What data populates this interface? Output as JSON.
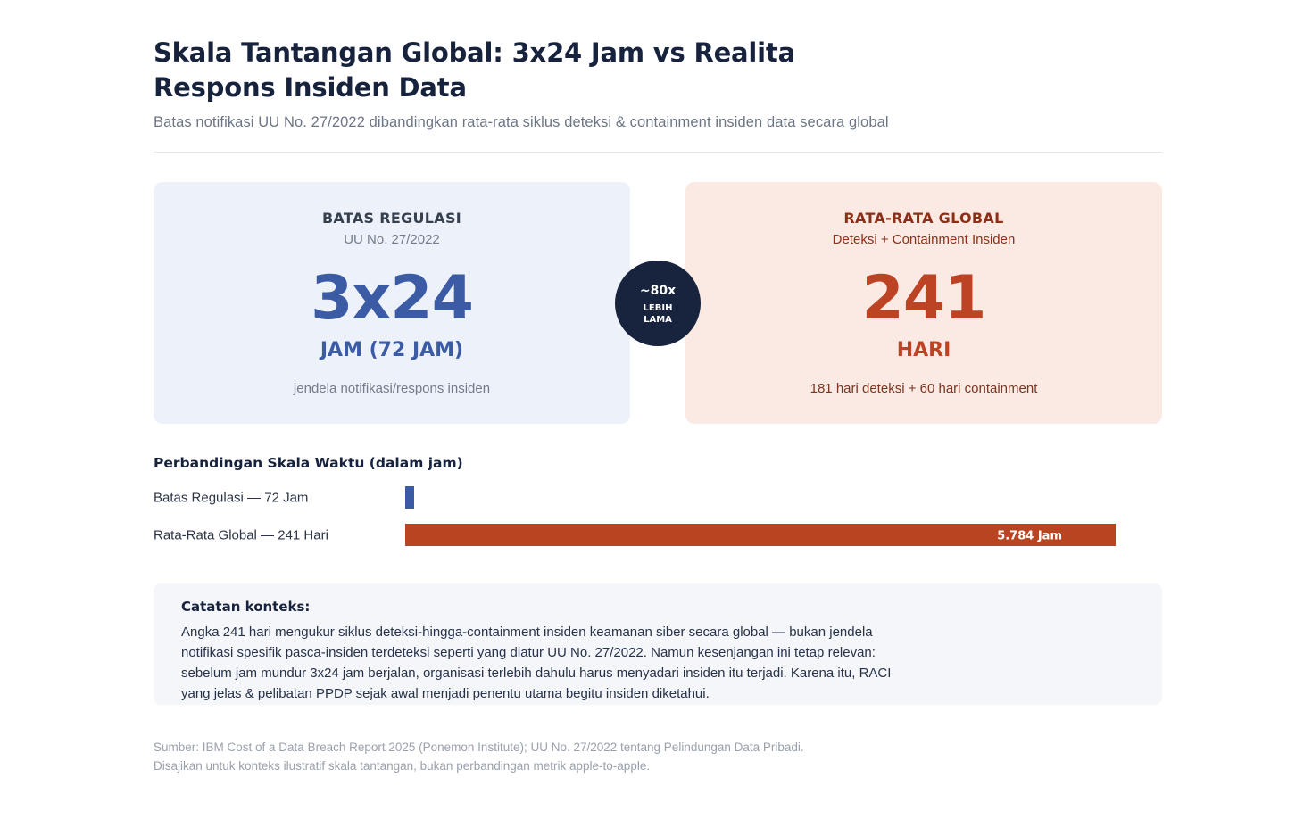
{
  "header": {
    "title": "Skala Tantangan Global: 3x24 Jam vs Realita Respons Insiden Data",
    "subtitle": "Batas notifikasi UU No. 27/2022 dibandingkan rata-rata siklus deteksi & containment insiden data secara global"
  },
  "cards": {
    "regulation": {
      "heading": "BATAS REGULASI",
      "sub": "UU No. 27/2022",
      "big": "3x24",
      "unit": "JAM (72 JAM)",
      "note": "jendela notifikasi/respons insiden"
    },
    "global": {
      "heading": "RATA-RATA GLOBAL",
      "sub": "Deteksi + Containment Insiden",
      "big": "241",
      "unit": "HARI",
      "note": "181 hari deteksi + 60 hari containment"
    },
    "badge": {
      "value": "~80x",
      "label": "LEBIH LAMA"
    }
  },
  "colors": {
    "regulation": "#3b5ba5",
    "global": "#b84422",
    "badge": "#18233d"
  },
  "chart_data": {
    "type": "bar",
    "orientation": "horizontal",
    "title": "Perbandingan Skala Waktu (dalam jam)",
    "categories": [
      "Batas Regulasi — 72 Jam",
      "Rata-Rata Global — 241 Hari"
    ],
    "values": [
      72,
      5784
    ],
    "value_labels": [
      "",
      "5.784 Jam"
    ],
    "xlim": [
      0,
      5784
    ],
    "grid": false,
    "legend": "none"
  },
  "context": {
    "title": "Catatan konteks:",
    "body": "Angka 241 hari mengukur siklus deteksi-hingga-containment insiden keamanan siber secara global — bukan jendela notifikasi spesifik pasca-insiden terdeteksi seperti yang diatur UU No. 27/2022. Namun kesenjangan ini tetap relevan: sebelum jam mundur 3x24 jam berjalan, organisasi terlebih dahulu harus menyadari insiden itu terjadi. Karena itu, RACI yang jelas & pelibatan PPDP sejak awal menjadi penentu utama begitu insiden diketahui."
  },
  "footer": {
    "source": "Sumber: IBM Cost of a Data Breach Report 2025 (Ponemon Institute); UU No. 27/2022 tentang Pelindungan Data Pribadi.",
    "disclaimer": "Disajikan untuk konteks ilustratif skala tantangan, bukan perbandingan metrik apple-to-apple."
  }
}
